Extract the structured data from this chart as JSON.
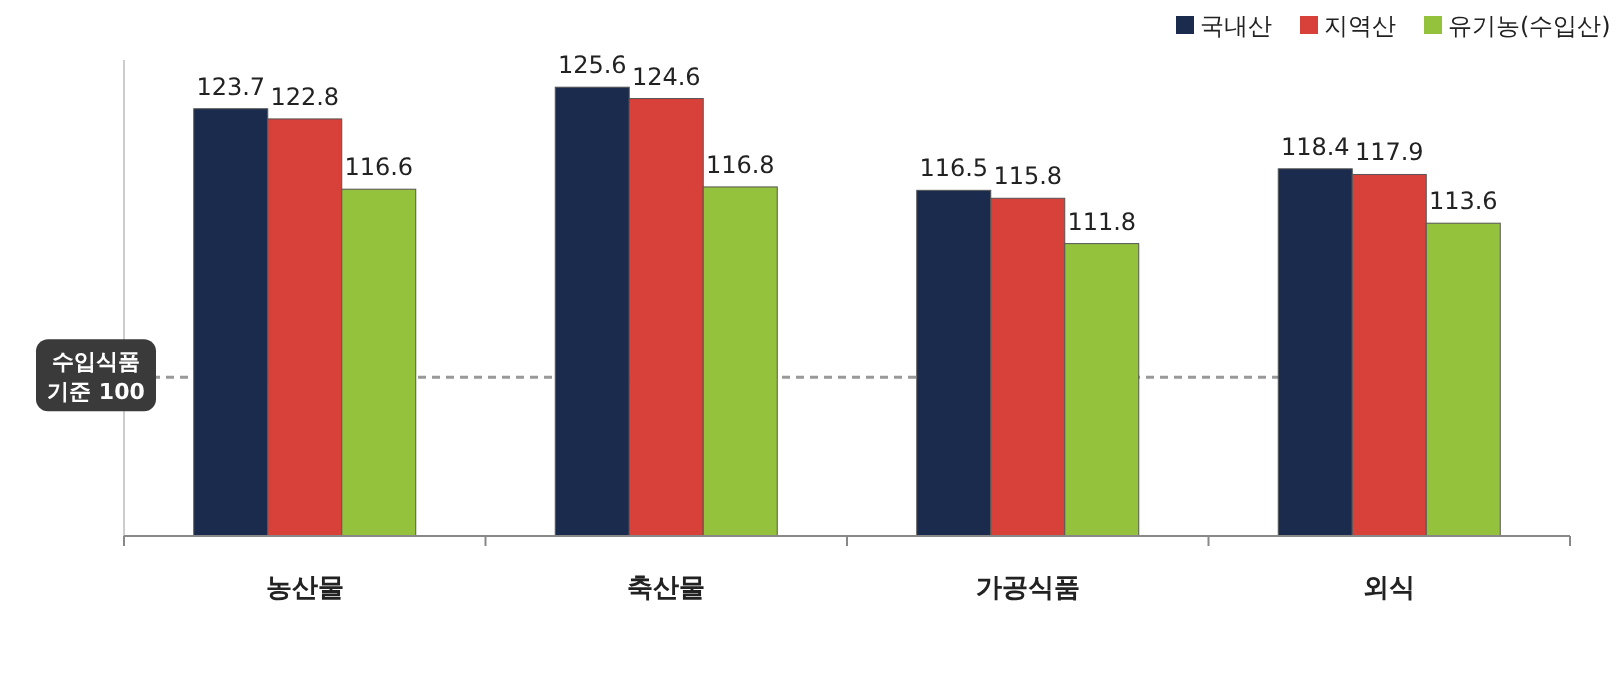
{
  "chart_data": {
    "type": "bar",
    "categories": [
      "농산물",
      "축산물",
      "가공식품",
      "외식"
    ],
    "series": [
      {
        "name": "국내산",
        "color": "#1b2b4d",
        "values": [
          123.7,
          125.6,
          116.5,
          118.4
        ]
      },
      {
        "name": "지역산",
        "color": "#d8403a",
        "values": [
          122.8,
          124.6,
          115.8,
          117.9
        ]
      },
      {
        "name": "유기농(수입산)",
        "color": "#95c23d",
        "values": [
          116.6,
          116.8,
          111.8,
          113.6
        ]
      }
    ],
    "ylim": [
      86,
      128
    ],
    "data_labels": true,
    "legend": "top right",
    "ref_lines": [
      {
        "axis": "y",
        "value": 100,
        "label": "수입식품\n기준 100",
        "color": "#999999",
        "line_style": "dashed"
      }
    ]
  }
}
